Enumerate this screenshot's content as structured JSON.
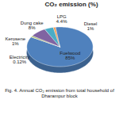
{
  "chart_data": {
    "type": "pie",
    "title": "CO₂ emission (%)",
    "caption": "Fig. 4. Annual CO₂ emission from total household of Dharampur block",
    "categories": [
      "Fuelwood",
      "Electricity",
      "Kerosene",
      "Dung cake",
      "LPG",
      "Diesel"
    ],
    "values": [
      85,
      0.12,
      1,
      8,
      4.4,
      1
    ],
    "value_labels": [
      "85%",
      "0.12%",
      "1%",
      "8%",
      "4.4%",
      "1%"
    ],
    "colors": [
      "#4f81bd",
      "#c0504d",
      "#9bbb59",
      "#8064a2",
      "#4bacc6",
      "#f79646"
    ],
    "data_labels": true
  }
}
